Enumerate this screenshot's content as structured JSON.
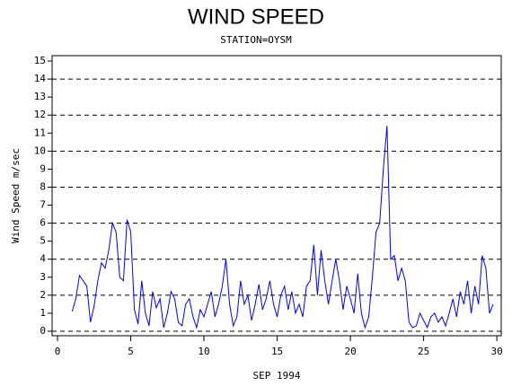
{
  "chart_data": {
    "type": "line",
    "title": "WIND SPEED",
    "subtitle": "STATION=OYSM",
    "x_label": "SEP 1994",
    "y_label": "Wind Speed m/sec",
    "x": [
      1,
      1.25,
      1.5,
      1.75,
      2,
      2.25,
      2.5,
      2.75,
      3,
      3.25,
      3.5,
      3.75,
      4,
      4.25,
      4.5,
      4.75,
      5,
      5.25,
      5.5,
      5.75,
      6,
      6.25,
      6.5,
      6.75,
      7,
      7.25,
      7.5,
      7.75,
      8,
      8.25,
      8.5,
      8.75,
      9,
      9.25,
      9.5,
      9.75,
      10,
      10.25,
      10.5,
      10.75,
      11,
      11.25,
      11.5,
      11.75,
      12,
      12.25,
      12.5,
      12.75,
      13,
      13.25,
      13.5,
      13.75,
      14,
      14.25,
      14.5,
      14.75,
      15,
      15.25,
      15.5,
      15.75,
      16,
      16.25,
      16.5,
      16.75,
      17,
      17.25,
      17.5,
      17.75,
      18,
      18.25,
      18.5,
      18.75,
      19,
      19.25,
      19.5,
      19.75,
      20,
      20.25,
      20.5,
      20.75,
      21,
      21.25,
      21.5,
      21.75,
      22,
      22.25,
      22.5,
      22.75,
      23,
      23.25,
      23.5,
      23.75,
      24,
      24.25,
      24.5,
      24.75,
      25,
      25.25,
      25.5,
      25.75,
      26,
      26.25,
      26.5,
      26.75,
      27,
      27.25,
      27.5,
      27.75,
      28,
      28.25,
      28.5,
      28.75,
      29,
      29.25,
      29.5,
      29.75
    ],
    "series": [
      {
        "color": "#0000ff",
        "values": [
          1.1,
          1.8,
          3.1,
          2.8,
          2.5,
          0.5,
          1.4,
          2.8,
          3.8,
          3.5,
          4.5,
          6.0,
          5.5,
          3.0,
          2.8,
          6.2,
          5.5,
          1.2,
          0.4,
          2.8,
          1.0,
          0.3,
          2.2,
          1.3,
          1.8,
          0.2,
          1.0,
          2.2,
          1.8,
          0.5,
          0.3,
          1.5,
          1.8,
          0.8,
          0.2,
          1.2,
          0.8,
          1.5,
          2.2,
          0.8,
          1.5,
          2.5,
          4.0,
          1.5,
          0.3,
          0.8,
          2.8,
          1.5,
          2.0,
          0.6,
          1.5,
          2.6,
          1.2,
          1.8,
          2.8,
          1.5,
          0.8,
          2.0,
          2.5,
          1.2,
          2.2,
          1.0,
          1.5,
          0.8,
          2.5,
          2.8,
          4.8,
          2.0,
          4.5,
          2.8,
          1.5,
          2.8,
          4.0,
          2.8,
          1.2,
          2.5,
          1.8,
          1.0,
          3.2,
          1.0,
          0.2,
          0.8,
          3.0,
          5.5,
          6.0,
          9.0,
          11.4,
          4.0,
          4.2,
          2.8,
          3.5,
          2.8,
          0.5,
          0.2,
          0.3,
          1.0,
          0.6,
          0.2,
          0.8,
          1.0,
          0.5,
          0.8,
          0.3,
          1.0,
          1.8,
          0.8,
          2.2,
          1.5,
          2.8,
          1.0,
          2.5,
          1.5,
          4.2,
          3.5,
          1.0,
          1.5
        ]
      }
    ],
    "xlim": [
      -0.37,
      30.3
    ],
    "xticks": [
      0,
      5,
      10,
      15,
      20,
      25,
      30
    ],
    "ylim": [
      -0.25,
      15.3
    ],
    "yticks": [
      0,
      1,
      2,
      3,
      4,
      5,
      6,
      7,
      8,
      9,
      10,
      11,
      12,
      13,
      14,
      15
    ],
    "grid_y": [
      0,
      2,
      4,
      6,
      8,
      10,
      12,
      14
    ]
  }
}
